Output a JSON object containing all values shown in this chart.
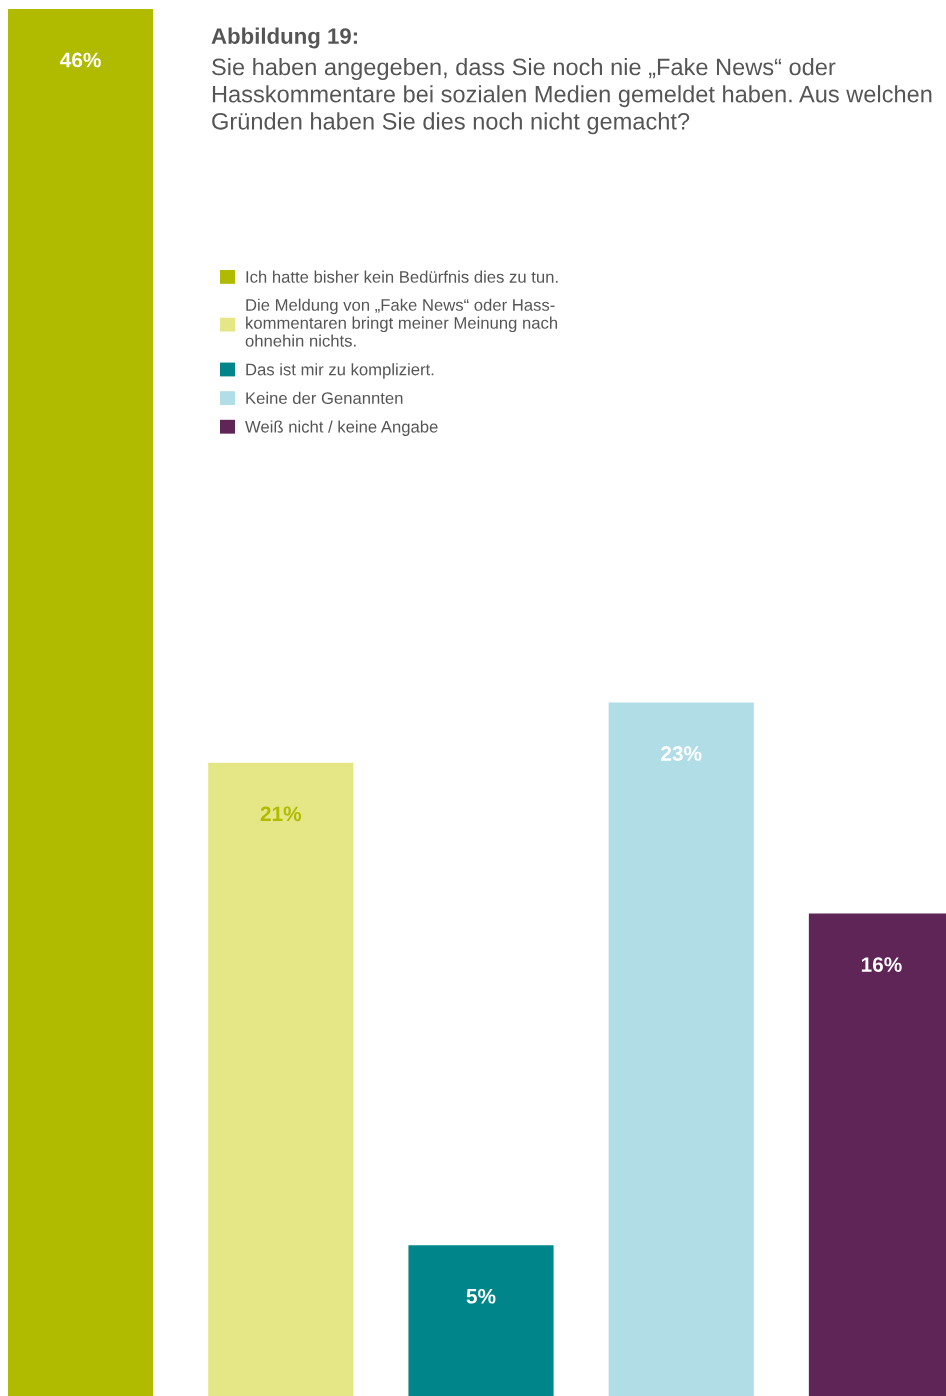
{
  "chart_data": {
    "type": "bar",
    "title": "Abbildung 19:",
    "subtitle": "Sie haben angegeben, dass Sie noch nie „Fake News“ oder Hasskommentare bei sozialen Medien gemeldet haben. Aus welchen Gründen haben Sie dies noch nicht gemacht?",
    "categories": [
      null,
      null,
      null,
      null,
      null
    ],
    "series": [
      {
        "name": "Ich hatte bisher kein Bedürfnis dies zu tun.",
        "color": "#b0bb00",
        "values": [
          46,
          null,
          null,
          null,
          null
        ],
        "value_labels": [
          "46%",
          null,
          null,
          null,
          null
        ]
      },
      {
        "name": "Die Meldung von „Fake News“ oder Hass-\nkommentaren bringt meiner Meinung nach\nohnehin nichts.",
        "color": "#e5e686",
        "values": [
          null,
          21,
          null,
          null,
          null
        ],
        "value_labels": [
          null,
          "21%",
          null,
          null,
          null
        ]
      },
      {
        "name": "Das ist mir zu kompliziert.",
        "color": "#00868a",
        "values": [
          null,
          null,
          5,
          null,
          null
        ],
        "value_labels": [
          null,
          null,
          "5%",
          null,
          null
        ]
      },
      {
        "name": "Keine der Genannten",
        "color": "#b1dde7",
        "values": [
          null,
          null,
          null,
          23,
          null
        ],
        "value_labels": [
          null,
          null,
          null,
          "23%",
          null
        ]
      },
      {
        "name": "Weiß nicht / keine Angabe",
        "color": "#5e2556",
        "values": [
          null,
          null,
          null,
          null,
          16
        ],
        "value_labels": [
          null,
          null,
          null,
          null,
          "16%"
        ]
      }
    ],
    "stacked": true,
    "legend": "top"
  }
}
